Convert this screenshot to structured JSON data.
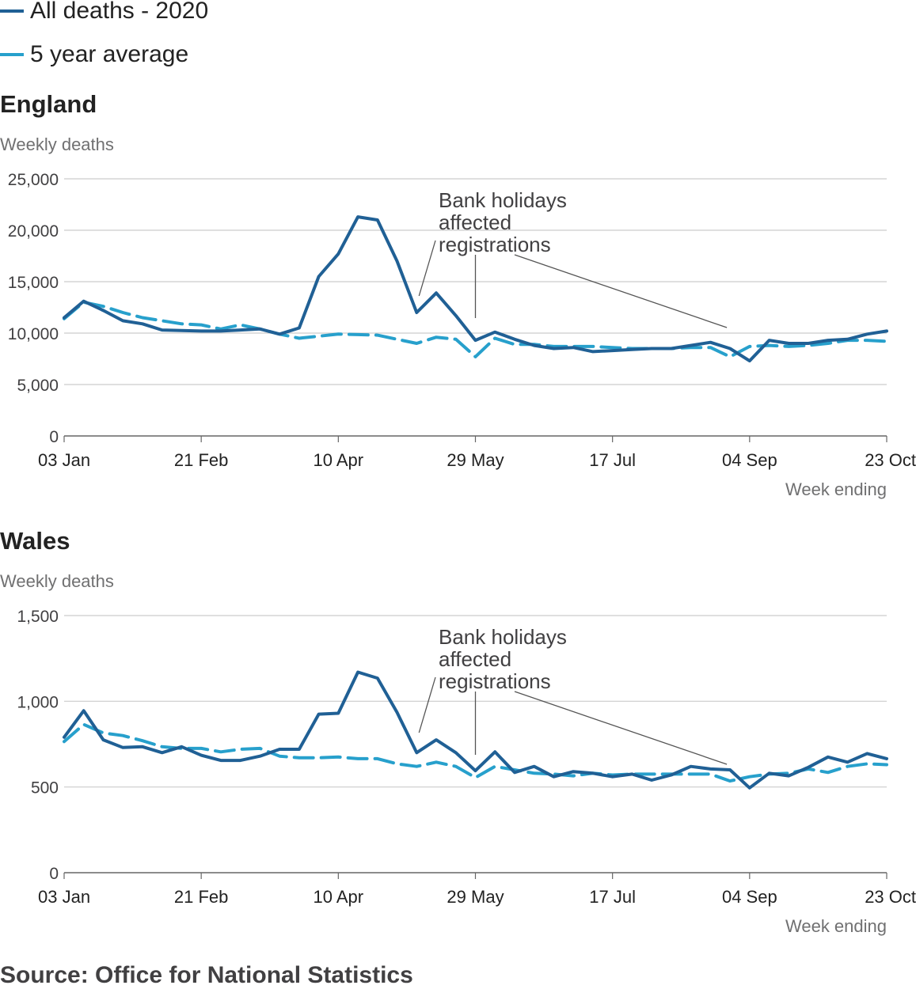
{
  "legend": [
    {
      "label": "All deaths - 2020",
      "color": "#206095",
      "style": "solid"
    },
    {
      "label": "5 year average",
      "color": "#27a0cc",
      "style": "dashed"
    }
  ],
  "source": "Source: Office for National Statistics",
  "chart_data": [
    {
      "type": "line",
      "title": "England",
      "ylabel": "Weekly deaths",
      "xlabel": "Week ending",
      "ylim": [
        0,
        25000
      ],
      "yticks": [
        0,
        5000,
        10000,
        15000,
        20000,
        25000
      ],
      "ytick_labels": [
        "0",
        "5,000",
        "10,000",
        "15,000",
        "20,000",
        "25,000"
      ],
      "xtick_labels": [
        "03 Jan",
        "21 Feb",
        "10 Apr",
        "29 May",
        "17 Jul",
        "04 Sep",
        "23 Oct"
      ],
      "xtick_weeks": [
        1,
        8,
        15,
        22,
        29,
        36,
        43
      ],
      "annotation": "Bank holidays affected registrations",
      "annotation_weeks": [
        19,
        22,
        35
      ],
      "series": [
        {
          "name": "All deaths - 2020",
          "color": "#206095",
          "dashed": false,
          "values": [
            11500,
            13100,
            12200,
            11200,
            10900,
            10300,
            10250,
            10200,
            10200,
            10300,
            10400,
            9900,
            10500,
            15500,
            17700,
            21300,
            21000,
            17000,
            12000,
            13900,
            11700,
            9300,
            10100,
            9400,
            8800,
            8500,
            8600,
            8200,
            8300,
            8400,
            8500,
            8500,
            8800,
            9100,
            8500,
            7300,
            9300,
            9000,
            9000,
            9300,
            9400,
            9900,
            10200
          ]
        },
        {
          "name": "5 year average",
          "color": "#27a0cc",
          "dashed": true,
          "values": [
            11400,
            13000,
            12600,
            12000,
            11500,
            11200,
            10900,
            10800,
            10400,
            10800,
            10400,
            9900,
            9500,
            9700,
            9900,
            9850,
            9800,
            9400,
            9000,
            9600,
            9400,
            7700,
            9500,
            8900,
            8900,
            8700,
            8700,
            8700,
            8600,
            8500,
            8500,
            8500,
            8600,
            8600,
            7700,
            8700,
            8800,
            8700,
            8800,
            9000,
            9300,
            9300,
            9200
          ]
        }
      ]
    },
    {
      "type": "line",
      "title": "Wales",
      "ylabel": "Weekly deaths",
      "xlabel": "Week ending",
      "ylim": [
        0,
        1500
      ],
      "yticks": [
        0,
        500,
        1000,
        1500
      ],
      "ytick_labels": [
        "0",
        "500",
        "1,000",
        "1,500"
      ],
      "xtick_labels": [
        "03 Jan",
        "21 Feb",
        "10 Apr",
        "29 May",
        "17 Jul",
        "04 Sep",
        "23 Oct"
      ],
      "xtick_weeks": [
        1,
        8,
        15,
        22,
        29,
        36,
        43
      ],
      "annotation": "Bank holidays affected registrations",
      "annotation_weeks": [
        19,
        22,
        35
      ],
      "series": [
        {
          "name": "All deaths - 2020",
          "color": "#206095",
          "dashed": false,
          "values": [
            790,
            945,
            775,
            730,
            735,
            700,
            735,
            685,
            655,
            655,
            680,
            720,
            720,
            925,
            930,
            1170,
            1135,
            935,
            700,
            775,
            700,
            595,
            705,
            585,
            620,
            560,
            590,
            580,
            560,
            575,
            540,
            570,
            620,
            605,
            600,
            495,
            580,
            565,
            615,
            675,
            645,
            695,
            665
          ]
        },
        {
          "name": "5 year average",
          "color": "#27a0cc",
          "dashed": true,
          "values": [
            765,
            865,
            815,
            800,
            770,
            735,
            725,
            725,
            705,
            720,
            725,
            680,
            670,
            670,
            675,
            665,
            665,
            635,
            620,
            645,
            620,
            555,
            620,
            600,
            580,
            575,
            565,
            580,
            570,
            575,
            575,
            575,
            575,
            575,
            535,
            560,
            575,
            580,
            605,
            585,
            620,
            635,
            630
          ]
        }
      ]
    }
  ]
}
